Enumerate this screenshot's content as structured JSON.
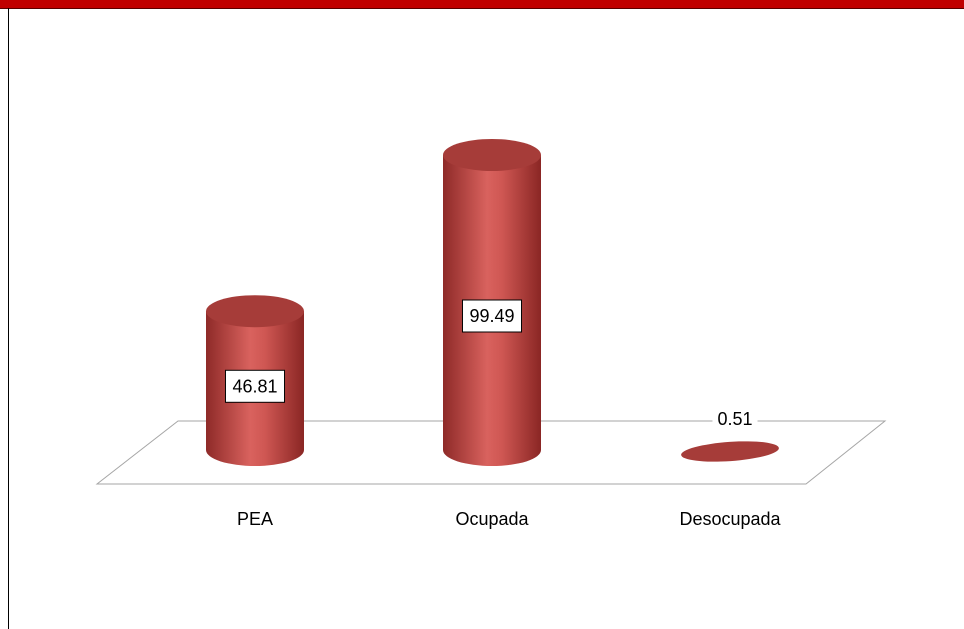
{
  "chart_data": {
    "type": "bar",
    "categories": [
      "PEA",
      "Ocupada",
      "Desocupada"
    ],
    "series": [
      {
        "color": "#c0504d",
        "values": [
          46.81,
          99.49,
          0.51
        ]
      }
    ]
  }
}
